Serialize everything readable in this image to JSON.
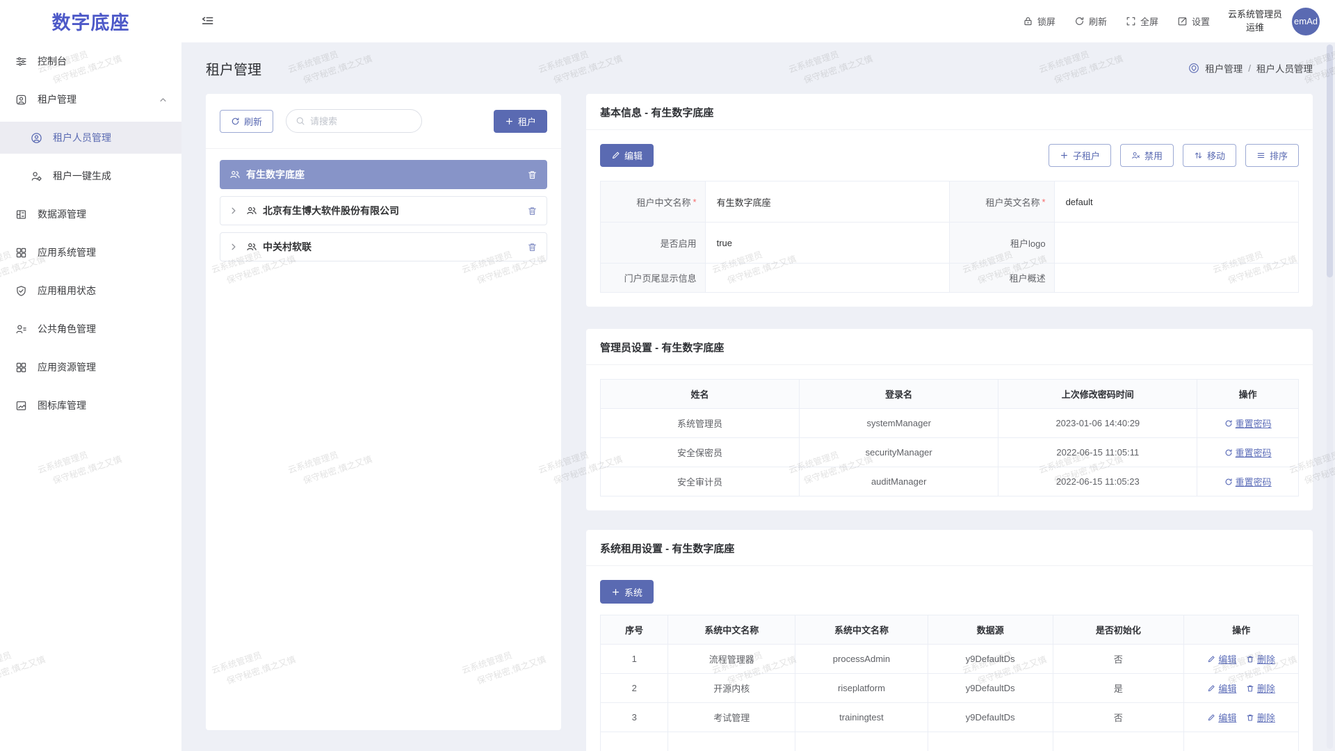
{
  "app": {
    "name": "数字底座"
  },
  "topbar": {
    "actions": [
      {
        "label": "锁屏"
      },
      {
        "label": "刷新"
      },
      {
        "label": "全屏"
      },
      {
        "label": "设置"
      }
    ],
    "user": {
      "name": "云系统管理员",
      "role": "运维",
      "avatar": "emAd"
    }
  },
  "sidebar": {
    "items": [
      {
        "label": "控制台"
      },
      {
        "label": "租户管理"
      },
      {
        "label": "租户人员管理"
      },
      {
        "label": "租户一键生成"
      },
      {
        "label": "数据源管理"
      },
      {
        "label": "应用系统管理"
      },
      {
        "label": "应用租用状态"
      },
      {
        "label": "公共角色管理"
      },
      {
        "label": "应用资源管理"
      },
      {
        "label": "图标库管理"
      }
    ]
  },
  "page": {
    "title": "租户管理",
    "breadcrumb": {
      "first": "租户管理",
      "separator": "/",
      "second": "租户人员管理"
    }
  },
  "tree_panel": {
    "refresh_label": "刷新",
    "search_placeholder": "请搜索",
    "add_label": "租户",
    "items": [
      {
        "label": "有生数字底座"
      },
      {
        "label": "北京有生博大软件股份有限公司"
      },
      {
        "label": "中关村软联"
      }
    ]
  },
  "basic_info": {
    "title": "基本信息 - 有生数字底座",
    "edit_label": "编辑",
    "actions": {
      "sub_tenant": "子租户",
      "disable": "禁用",
      "move": "移动",
      "sort": "排序"
    },
    "required_mark": "*",
    "rows": [
      {
        "l1": "租户中文名称",
        "v1": "有生数字底座",
        "l2": "租户英文名称",
        "v2": "default"
      },
      {
        "l1": "是否启用",
        "v1": "true",
        "l2": "租户logo",
        "v2": ""
      },
      {
        "l1": "门户页尾显示信息",
        "v1": "",
        "l2": "租户概述",
        "v2": ""
      }
    ]
  },
  "admin_settings": {
    "title": "管理员设置 - 有生数字底座",
    "columns": [
      "姓名",
      "登录名",
      "上次修改密码时间",
      "操作"
    ],
    "reset_label": "重置密码",
    "rows": [
      {
        "name": "系统管理员",
        "login": "systemManager",
        "time": "2023-01-06 14:40:29"
      },
      {
        "name": "安全保密员",
        "login": "securityManager",
        "time": "2022-06-15 11:05:11"
      },
      {
        "name": "安全审计员",
        "login": "auditManager",
        "time": "2022-06-15 11:05:23"
      }
    ]
  },
  "system_settings": {
    "title": "系统租用设置 - 有生数字底座",
    "add_label": "系统",
    "columns": [
      "序号",
      "系统中文名称",
      "系统中文名称",
      "数据源",
      "是否初始化",
      "操作"
    ],
    "edit_label": "编辑",
    "delete_label": "删除",
    "rows": [
      {
        "no": "1",
        "cn": "流程管理器",
        "en": "processAdmin",
        "ds": "y9DefaultDs",
        "init": "否"
      },
      {
        "no": "2",
        "cn": "开源内核",
        "en": "riseplatform",
        "ds": "y9DefaultDs",
        "init": "是"
      },
      {
        "no": "3",
        "cn": "考试管理",
        "en": "trainingtest",
        "ds": "y9DefaultDs",
        "init": "否"
      }
    ]
  },
  "watermark": {
    "line1": "云系统管理员",
    "line2": "保守秘密,慎之又慎"
  }
}
